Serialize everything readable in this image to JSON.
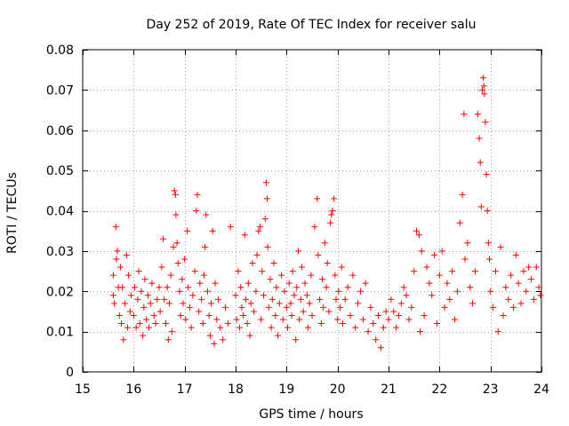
{
  "chart_data": {
    "type": "scatter",
    "title": "Day 252 of 2019, Rate Of TEC Index for receiver salu",
    "xlabel": "GPS time / hours",
    "ylabel": "ROTI / TECUs",
    "xlim": [
      15,
      24
    ],
    "ylim": [
      0,
      0.08
    ],
    "x_ticks": [
      15,
      16,
      17,
      18,
      19,
      20,
      21,
      22,
      23,
      24
    ],
    "y_ticks": [
      0,
      0.01,
      0.02,
      0.03,
      0.04,
      0.05,
      0.06,
      0.07,
      0.08
    ],
    "x_tick_labels": [
      "15",
      "16",
      "17",
      "18",
      "19",
      "20",
      "21",
      "22",
      "23",
      "24"
    ],
    "y_tick_labels": [
      "0",
      "0.01",
      "0.02",
      "0.03",
      "0.04",
      "0.05",
      "0.06",
      "0.07",
      "0.08"
    ],
    "grid": true,
    "marker": "+",
    "color": "#ff0000",
    "series": [
      {
        "name": "ROTI",
        "points": [
          [
            15.6,
            0.019
          ],
          [
            15.6,
            0.024
          ],
          [
            15.62,
            0.017
          ],
          [
            15.65,
            0.036
          ],
          [
            15.66,
            0.028
          ],
          [
            15.68,
            0.03
          ],
          [
            15.7,
            0.021
          ],
          [
            15.72,
            0.014
          ],
          [
            15.74,
            0.026
          ],
          [
            15.76,
            0.012
          ],
          [
            15.78,
            0.021
          ],
          [
            15.8,
            0.008
          ],
          [
            15.83,
            0.017
          ],
          [
            15.86,
            0.029
          ],
          [
            15.88,
            0.011
          ],
          [
            15.9,
            0.024
          ],
          [
            15.93,
            0.015
          ],
          [
            15.95,
            0.019
          ],
          [
            16.0,
            0.014
          ],
          [
            16.02,
            0.021
          ],
          [
            16.05,
            0.011
          ],
          [
            16.08,
            0.018
          ],
          [
            16.1,
            0.025
          ],
          [
            16.12,
            0.012
          ],
          [
            16.15,
            0.02
          ],
          [
            16.18,
            0.009
          ],
          [
            16.2,
            0.016
          ],
          [
            16.22,
            0.023
          ],
          [
            16.25,
            0.013
          ],
          [
            16.28,
            0.019
          ],
          [
            16.3,
            0.011
          ],
          [
            16.33,
            0.017
          ],
          [
            16.36,
            0.022
          ],
          [
            16.4,
            0.014
          ],
          [
            16.43,
            0.012
          ],
          [
            16.46,
            0.018
          ],
          [
            16.5,
            0.021
          ],
          [
            16.52,
            0.015
          ],
          [
            16.55,
            0.026
          ],
          [
            16.58,
            0.033
          ],
          [
            16.6,
            0.018
          ],
          [
            16.63,
            0.012
          ],
          [
            16.66,
            0.021
          ],
          [
            16.68,
            0.008
          ],
          [
            16.7,
            0.017
          ],
          [
            16.73,
            0.024
          ],
          [
            16.75,
            0.01
          ],
          [
            16.78,
            0.031
          ],
          [
            16.8,
            0.045
          ],
          [
            16.82,
            0.044
          ],
          [
            16.83,
            0.039
          ],
          [
            16.85,
            0.032
          ],
          [
            16.87,
            0.027
          ],
          [
            16.9,
            0.02
          ],
          [
            16.92,
            0.014
          ],
          [
            16.95,
            0.023
          ],
          [
            16.97,
            0.017
          ],
          [
            17.0,
            0.028
          ],
          [
            17.02,
            0.013
          ],
          [
            17.05,
            0.035
          ],
          [
            17.07,
            0.021
          ],
          [
            17.1,
            0.016
          ],
          [
            17.13,
            0.011
          ],
          [
            17.16,
            0.019
          ],
          [
            17.2,
            0.025
          ],
          [
            17.23,
            0.04
          ],
          [
            17.25,
            0.044
          ],
          [
            17.28,
            0.015
          ],
          [
            17.3,
            0.022
          ],
          [
            17.33,
            0.018
          ],
          [
            17.36,
            0.012
          ],
          [
            17.38,
            0.024
          ],
          [
            17.4,
            0.031
          ],
          [
            17.42,
            0.039
          ],
          [
            17.45,
            0.02
          ],
          [
            17.48,
            0.014
          ],
          [
            17.5,
            0.009
          ],
          [
            17.52,
            0.017
          ],
          [
            17.55,
            0.035
          ],
          [
            17.58,
            0.007
          ],
          [
            17.6,
            0.022
          ],
          [
            17.63,
            0.013
          ],
          [
            17.66,
            0.018
          ],
          [
            17.7,
            0.011
          ],
          [
            17.75,
            0.008
          ],
          [
            17.8,
            0.016
          ],
          [
            17.85,
            0.012
          ],
          [
            17.9,
            0.036
          ],
          [
            18.0,
            0.019
          ],
          [
            18.02,
            0.013
          ],
          [
            18.05,
            0.025
          ],
          [
            18.08,
            0.011
          ],
          [
            18.1,
            0.021
          ],
          [
            18.12,
            0.016
          ],
          [
            18.15,
            0.014
          ],
          [
            18.18,
            0.034
          ],
          [
            18.2,
            0.018
          ],
          [
            18.23,
            0.012
          ],
          [
            18.25,
            0.022
          ],
          [
            18.28,
            0.009
          ],
          [
            18.3,
            0.017
          ],
          [
            18.33,
            0.027
          ],
          [
            18.36,
            0.015
          ],
          [
            18.4,
            0.02
          ],
          [
            18.42,
            0.029
          ],
          [
            18.45,
            0.035
          ],
          [
            18.48,
            0.036
          ],
          [
            18.5,
            0.013
          ],
          [
            18.52,
            0.025
          ],
          [
            18.55,
            0.019
          ],
          [
            18.58,
            0.038
          ],
          [
            18.6,
            0.047
          ],
          [
            18.62,
            0.043
          ],
          [
            18.63,
            0.031
          ],
          [
            18.65,
            0.016
          ],
          [
            18.68,
            0.023
          ],
          [
            18.7,
            0.011
          ],
          [
            18.72,
            0.018
          ],
          [
            18.75,
            0.027
          ],
          [
            18.78,
            0.014
          ],
          [
            18.8,
            0.021
          ],
          [
            18.83,
            0.009
          ],
          [
            18.86,
            0.017
          ],
          [
            18.9,
            0.024
          ],
          [
            18.93,
            0.013
          ],
          [
            18.96,
            0.02
          ],
          [
            19.0,
            0.016
          ],
          [
            19.02,
            0.011
          ],
          [
            19.05,
            0.022
          ],
          [
            19.08,
            0.017
          ],
          [
            19.1,
            0.014
          ],
          [
            19.12,
            0.025
          ],
          [
            19.15,
            0.019
          ],
          [
            19.18,
            0.008
          ],
          [
            19.2,
            0.021
          ],
          [
            19.23,
            0.03
          ],
          [
            19.25,
            0.013
          ],
          [
            19.28,
            0.018
          ],
          [
            19.3,
            0.026
          ],
          [
            19.33,
            0.015
          ],
          [
            19.36,
            0.022
          ],
          [
            19.4,
            0.019
          ],
          [
            19.42,
            0.011
          ],
          [
            19.45,
            0.017
          ],
          [
            19.48,
            0.024
          ],
          [
            19.5,
            0.014
          ],
          [
            19.55,
            0.036
          ],
          [
            19.6,
            0.043
          ],
          [
            19.62,
            0.029
          ],
          [
            19.65,
            0.018
          ],
          [
            19.68,
            0.012
          ],
          [
            19.7,
            0.023
          ],
          [
            19.72,
            0.016
          ],
          [
            19.75,
            0.032
          ],
          [
            19.78,
            0.021
          ],
          [
            19.8,
            0.027
          ],
          [
            19.83,
            0.015
          ],
          [
            19.86,
            0.037
          ],
          [
            19.88,
            0.039
          ],
          [
            19.9,
            0.04
          ],
          [
            19.93,
            0.043
          ],
          [
            19.95,
            0.024
          ],
          [
            19.97,
            0.018
          ],
          [
            20.0,
            0.013
          ],
          [
            20.02,
            0.02
          ],
          [
            20.05,
            0.016
          ],
          [
            20.08,
            0.026
          ],
          [
            20.1,
            0.012
          ],
          [
            20.15,
            0.018
          ],
          [
            20.2,
            0.021
          ],
          [
            20.25,
            0.014
          ],
          [
            20.3,
            0.024
          ],
          [
            20.35,
            0.011
          ],
          [
            20.4,
            0.017
          ],
          [
            20.45,
            0.02
          ],
          [
            20.5,
            0.013
          ],
          [
            20.55,
            0.022
          ],
          [
            20.6,
            0.01
          ],
          [
            20.65,
            0.016
          ],
          [
            20.7,
            0.012
          ],
          [
            20.75,
            0.008
          ],
          [
            20.8,
            0.014
          ],
          [
            20.85,
            0.006
          ],
          [
            20.9,
            0.011
          ],
          [
            20.95,
            0.015
          ],
          [
            21.0,
            0.013
          ],
          [
            21.05,
            0.018
          ],
          [
            21.1,
            0.015
          ],
          [
            21.15,
            0.011
          ],
          [
            21.2,
            0.014
          ],
          [
            21.25,
            0.017
          ],
          [
            21.3,
            0.021
          ],
          [
            21.35,
            0.019
          ],
          [
            21.4,
            0.013
          ],
          [
            21.45,
            0.016
          ],
          [
            21.5,
            0.025
          ],
          [
            21.55,
            0.035
          ],
          [
            21.6,
            0.034
          ],
          [
            21.62,
            0.01
          ],
          [
            21.65,
            0.03
          ],
          [
            21.7,
            0.014
          ],
          [
            21.75,
            0.026
          ],
          [
            21.8,
            0.022
          ],
          [
            21.85,
            0.019
          ],
          [
            21.9,
            0.029
          ],
          [
            21.95,
            0.012
          ],
          [
            22.0,
            0.024
          ],
          [
            22.05,
            0.03
          ],
          [
            22.1,
            0.016
          ],
          [
            22.15,
            0.022
          ],
          [
            22.2,
            0.018
          ],
          [
            22.25,
            0.025
          ],
          [
            22.3,
            0.013
          ],
          [
            22.35,
            0.02
          ],
          [
            22.4,
            0.037
          ],
          [
            22.45,
            0.044
          ],
          [
            22.48,
            0.064
          ],
          [
            22.5,
            0.028
          ],
          [
            22.55,
            0.032
          ],
          [
            22.6,
            0.021
          ],
          [
            22.65,
            0.017
          ],
          [
            22.7,
            0.025
          ],
          [
            22.75,
            0.064
          ],
          [
            22.78,
            0.058
          ],
          [
            22.8,
            0.052
          ],
          [
            22.82,
            0.041
          ],
          [
            22.84,
            0.07
          ],
          [
            22.86,
            0.073
          ],
          [
            22.87,
            0.071
          ],
          [
            22.88,
            0.069
          ],
          [
            22.9,
            0.062
          ],
          [
            22.92,
            0.049
          ],
          [
            22.94,
            0.04
          ],
          [
            22.96,
            0.032
          ],
          [
            22.98,
            0.028
          ],
          [
            23.0,
            0.02
          ],
          [
            23.05,
            0.016
          ],
          [
            23.1,
            0.025
          ],
          [
            23.15,
            0.01
          ],
          [
            23.2,
            0.031
          ],
          [
            23.25,
            0.014
          ],
          [
            23.3,
            0.021
          ],
          [
            23.35,
            0.018
          ],
          [
            23.4,
            0.024
          ],
          [
            23.45,
            0.016
          ],
          [
            23.5,
            0.029
          ],
          [
            23.55,
            0.022
          ],
          [
            23.6,
            0.017
          ],
          [
            23.65,
            0.025
          ],
          [
            23.7,
            0.02
          ],
          [
            23.75,
            0.026
          ],
          [
            23.8,
            0.023
          ],
          [
            23.85,
            0.018
          ],
          [
            23.9,
            0.026
          ],
          [
            23.95,
            0.021
          ],
          [
            23.98,
            0.019
          ]
        ]
      }
    ]
  }
}
